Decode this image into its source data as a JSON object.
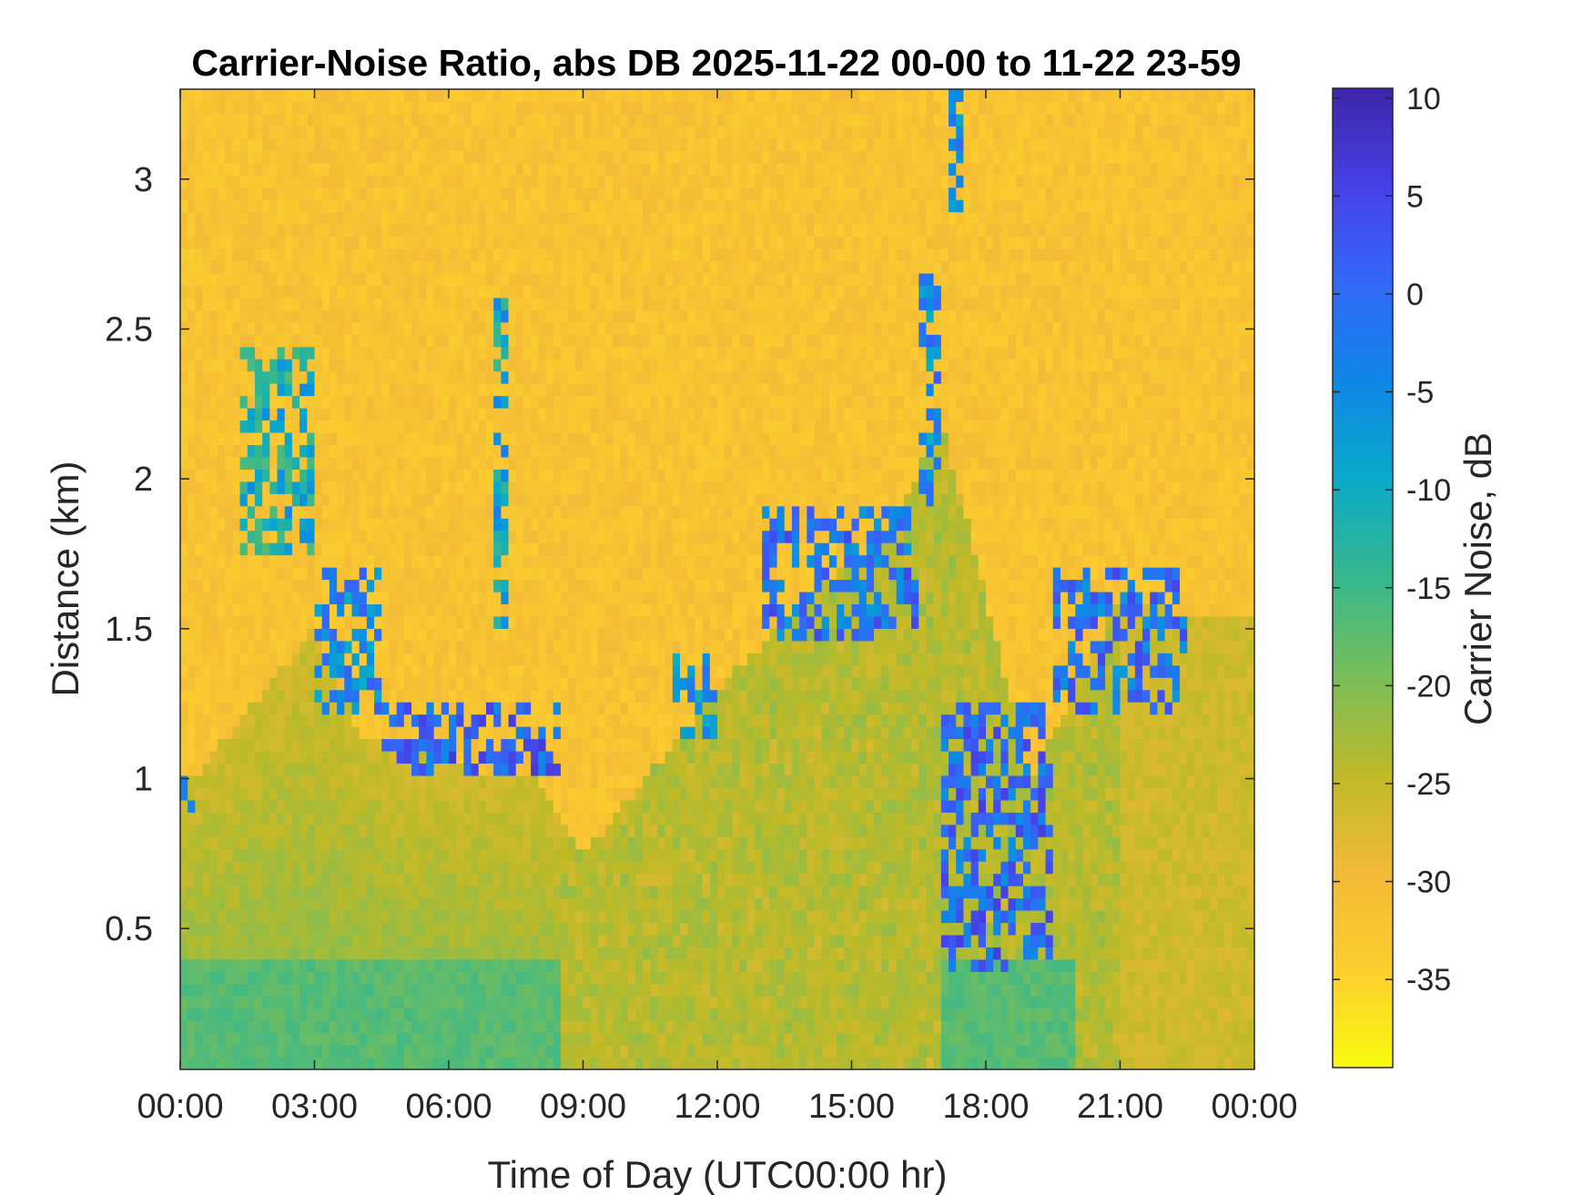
{
  "chart_data": {
    "type": "heatmap",
    "title": "Carrier-Noise Ratio, abs DB 2025-11-22 00-00 to 11-22 23-59",
    "xlabel": "Time of Day (UTC00:00 hr)",
    "ylabel": "Distance (km)",
    "x_tick_labels": [
      "00:00",
      "03:00",
      "06:00",
      "09:00",
      "12:00",
      "15:00",
      "18:00",
      "21:00",
      "00:00"
    ],
    "x_tick_hours": [
      0,
      3,
      6,
      9,
      12,
      15,
      18,
      21,
      24
    ],
    "xlim_hours": [
      0,
      24
    ],
    "y_ticks": [
      0.5,
      1,
      1.5,
      2,
      2.5,
      3
    ],
    "y_tick_labels": [
      "0.5",
      "1",
      "1.5",
      "2",
      "2.5",
      "3"
    ],
    "ylim": [
      0.03,
      3.3
    ],
    "colorbar": {
      "label": "Carrier Noise, dB",
      "ticks": [
        10,
        5,
        0,
        -5,
        -10,
        -15,
        -20,
        -25,
        -30,
        -35
      ],
      "tick_labels": [
        "10",
        "5",
        "0",
        "-5",
        "-10",
        "-15",
        "-20",
        "-25",
        "-30",
        "-35"
      ],
      "range": [
        -39.5,
        10.5
      ],
      "colormap": "parula"
    },
    "layers": {
      "background_db": -32,
      "aerosol_layer_top_km": [
        {
          "hour": 0,
          "km": 0.95
        },
        {
          "hour": 3,
          "km": 1.5
        },
        {
          "hour": 4,
          "km": 1.15
        },
        {
          "hour": 6,
          "km": 1.05
        },
        {
          "hour": 8,
          "km": 1.0
        },
        {
          "hour": 9,
          "km": 0.75
        },
        {
          "hour": 12,
          "km": 1.3
        },
        {
          "hour": 14,
          "km": 1.6
        },
        {
          "hour": 16,
          "km": 1.85
        },
        {
          "hour": 17,
          "km": 2.2
        },
        {
          "hour": 17,
          "km": 0.35
        },
        {
          "hour": 19,
          "km": 1.0
        },
        {
          "hour": 21,
          "km": 1.6
        },
        {
          "hour": 22.5,
          "km": 1.55
        },
        {
          "hour": 24,
          "km": 1.55
        }
      ],
      "cloud_segments": [
        {
          "hours": [
            0.0,
            0.3
          ],
          "km": [
            0.9,
            1.05
          ],
          "db": 5
        },
        {
          "hours": [
            1.3,
            3.0
          ],
          "km": [
            1.75,
            2.45
          ],
          "db": -5
        },
        {
          "hours": [
            3.0,
            4.5
          ],
          "km": [
            1.2,
            1.7
          ],
          "db": 2
        },
        {
          "hours": [
            4.5,
            8.5
          ],
          "km": [
            1.0,
            1.25
          ],
          "db": 7
        },
        {
          "hours": [
            7.0,
            7.4
          ],
          "km": [
            1.45,
            2.6
          ],
          "db": -3
        },
        {
          "hours": [
            11.0,
            12.0
          ],
          "km": [
            1.15,
            1.4
          ],
          "db": 0
        },
        {
          "hours": [
            13.0,
            16.5
          ],
          "km": [
            1.45,
            1.9
          ],
          "db": 5
        },
        {
          "hours": [
            16.5,
            17.0
          ],
          "km": [
            1.9,
            2.7
          ],
          "db": 2
        },
        {
          "hours": [
            17.2,
            17.5
          ],
          "km": [
            2.9,
            3.3
          ],
          "db": 2
        },
        {
          "hours": [
            17.0,
            19.5
          ],
          "km": [
            0.35,
            1.25
          ],
          "db": 6
        },
        {
          "hours": [
            19.5,
            22.5
          ],
          "km": [
            1.2,
            1.7
          ],
          "db": 5
        }
      ]
    }
  }
}
